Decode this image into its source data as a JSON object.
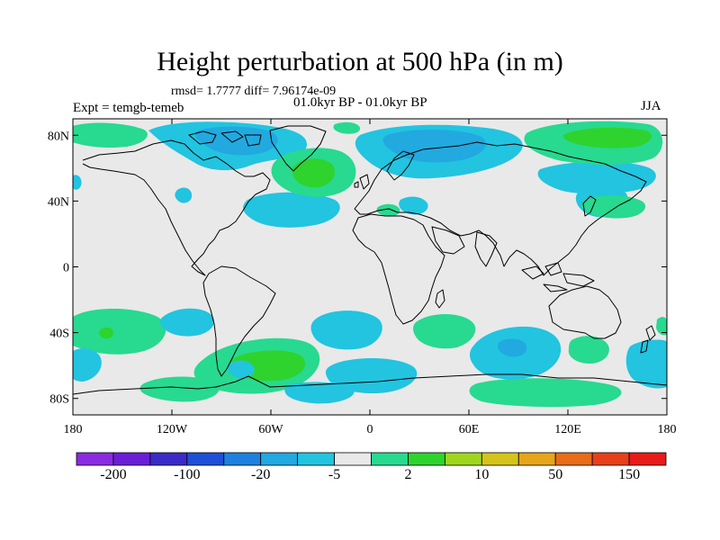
{
  "title": "Height perturbation at 500 hPa (in m)",
  "stats": "rmsd= 1.7777 diff= 7.96174e-09",
  "experiment": "Expt = temgb-temeb",
  "period": "01.0kyr BP - 01.0kyr BP",
  "season": "JJA",
  "axes": {
    "lat_ticks": [
      {
        "value": 80,
        "label": "80N"
      },
      {
        "value": 40,
        "label": "40N"
      },
      {
        "value": 0,
        "label": "0"
      },
      {
        "value": -40,
        "label": "40S"
      },
      {
        "value": -80,
        "label": "80S"
      }
    ],
    "lon_ticks": [
      {
        "value": -180,
        "label": "180"
      },
      {
        "value": -120,
        "label": "120W"
      },
      {
        "value": -60,
        "label": "60W"
      },
      {
        "value": 0,
        "label": "0"
      },
      {
        "value": 60,
        "label": "60E"
      },
      {
        "value": 120,
        "label": "120E"
      },
      {
        "value": 180,
        "label": "180"
      }
    ],
    "lon_range": [
      -180,
      180
    ],
    "lat_range": [
      -90,
      90
    ]
  },
  "colorbar": {
    "colors": [
      "#8a2be2",
      "#6a1fd6",
      "#3a2bc8",
      "#1f4fd6",
      "#1f80e0",
      "#21a9e0",
      "#22c4e0",
      "#e9e9e9",
      "#28d990",
      "#2ed32e",
      "#9ed61f",
      "#d4c41a",
      "#e6a51a",
      "#e86c1a",
      "#e8401a",
      "#e81a1a"
    ],
    "labels": [
      {
        "after_bin": 1,
        "text": "-200"
      },
      {
        "after_bin": 3,
        "text": "-100"
      },
      {
        "after_bin": 5,
        "text": "-20"
      },
      {
        "after_bin": 7,
        "text": "-5"
      },
      {
        "after_bin": 9,
        "text": "2"
      },
      {
        "after_bin": 11,
        "text": "10"
      },
      {
        "after_bin": 13,
        "text": "50"
      },
      {
        "after_bin": 15,
        "text": "150"
      }
    ]
  },
  "colors": {
    "background": "#e9e9e9",
    "neg_small": "#22c4e0",
    "neg_medium": "#21a9e0",
    "neg_large": "#1f80e0",
    "pos_small": "#28d990",
    "pos_medium": "#2ed32e",
    "coast": "#000000"
  }
}
